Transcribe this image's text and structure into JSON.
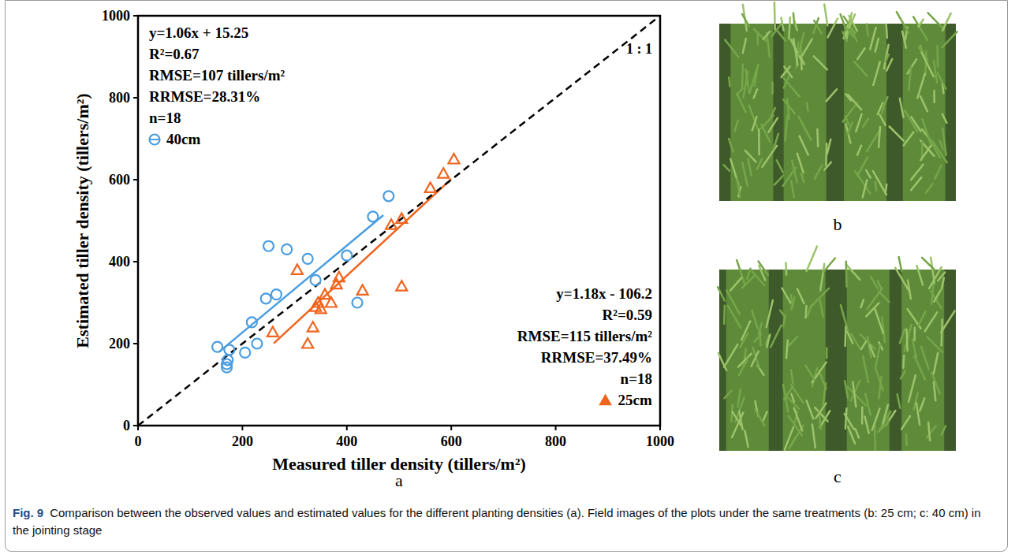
{
  "chart_data": {
    "type": "scatter",
    "x_label": "Measured tiller density (tillers/m²)",
    "y_label": "Estimated tiller density (tillers/m²)",
    "xlim": [
      0,
      1000
    ],
    "ylim": [
      0,
      1000
    ],
    "xticks": [
      0,
      200,
      400,
      600,
      800,
      1000
    ],
    "yticks": [
      0,
      200,
      400,
      600,
      800,
      1000
    ],
    "grid": false,
    "annotations": [
      "1 : 1"
    ],
    "series": [
      {
        "name": "40cm",
        "type": "scatter",
        "color": "#4a9de0",
        "marker": "circle",
        "x": [
          152,
          170,
          170,
          172,
          175,
          205,
          218,
          228,
          245,
          250,
          265,
          285,
          325,
          340,
          400,
          420,
          450,
          480
        ],
        "values": [
          192,
          150,
          142,
          160,
          185,
          178,
          252,
          200,
          310,
          438,
          320,
          430,
          407,
          355,
          415,
          300,
          510,
          560
        ],
        "stats_text": [
          "y=1.06x + 15.25",
          "R²=0.67",
          "RMSE=107 tillers/m²",
          "RRMSE=28.31%",
          "n=18"
        ]
      },
      {
        "name": "25cm",
        "type": "scatter",
        "color": "#f0641e",
        "marker": "triangle",
        "x": [
          258,
          305,
          325,
          335,
          340,
          345,
          350,
          358,
          370,
          380,
          385,
          430,
          485,
          505,
          505,
          560,
          585,
          605
        ],
        "values": [
          228,
          380,
          200,
          240,
          290,
          300,
          285,
          320,
          300,
          345,
          362,
          330,
          490,
          505,
          340,
          580,
          615,
          650
        ],
        "stats_text": [
          "y=1.18x - 106.2",
          "R²=0.59",
          "RMSE=115 tillers/m²",
          "RRMSE=37.49%",
          "n=18"
        ]
      },
      {
        "type": "line",
        "color": "#4a9de0",
        "line_style": "solid",
        "x": [
          155,
          470
        ],
        "values": [
          179.6,
          513.45
        ]
      },
      {
        "type": "line",
        "color": "#f0641e",
        "line_style": "solid",
        "x": [
          260,
          600
        ],
        "values": [
          200.6,
          601.8
        ]
      },
      {
        "type": "line",
        "color": "#000000",
        "line_style": "dashed",
        "x": [
          0,
          1000
        ],
        "values": [
          0,
          1000
        ]
      }
    ]
  },
  "figure": {
    "panel_labels": [
      "a",
      "b",
      "c"
    ],
    "caption_label": "Fig. 9",
    "caption": "Comparison between the observed values and estimated values for the different planting densities (a). Field images of the plots under the same treatments (b: 25 cm; c: 40 cm) in the jointing stage"
  }
}
